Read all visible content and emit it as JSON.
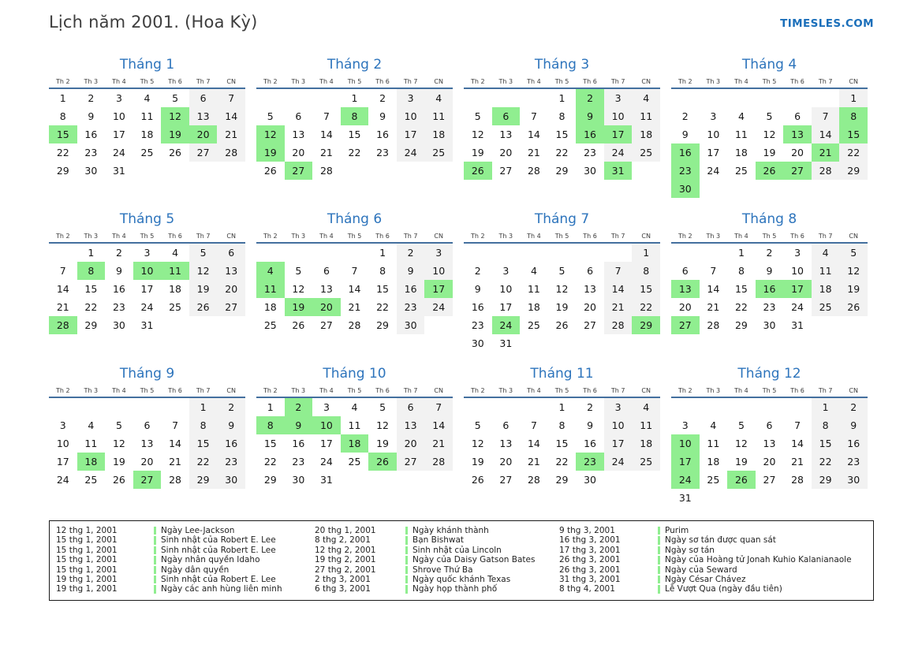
{
  "header": {
    "title": "Lịch năm 2001. (Hoa Kỳ)",
    "brand": "TIMESLES.COM"
  },
  "calendar": {
    "day_headers": [
      "Th 2",
      "Th 3",
      "Th 4",
      "Th 5",
      "Th 6",
      "Th 7",
      "CN"
    ],
    "months": [
      {
        "label": "Tháng 1",
        "first_dow": 0,
        "days": 31,
        "highlighted": [
          12,
          15,
          19,
          20
        ]
      },
      {
        "label": "Tháng 2",
        "first_dow": 3,
        "days": 28,
        "highlighted": [
          8,
          12,
          19,
          27
        ]
      },
      {
        "label": "Tháng 3",
        "first_dow": 3,
        "days": 31,
        "highlighted": [
          2,
          6,
          9,
          16,
          17,
          26,
          31
        ]
      },
      {
        "label": "Tháng 4",
        "first_dow": 6,
        "days": 30,
        "highlighted": [
          8,
          13,
          15,
          16,
          21,
          23,
          26,
          27,
          30
        ]
      },
      {
        "label": "Tháng 5",
        "first_dow": 1,
        "days": 31,
        "highlighted": [
          8,
          10,
          11,
          28
        ]
      },
      {
        "label": "Tháng 6",
        "first_dow": 4,
        "days": 30,
        "highlighted": [
          4,
          11,
          17,
          19,
          20
        ]
      },
      {
        "label": "Tháng 7",
        "first_dow": 6,
        "days": 31,
        "highlighted": [
          24,
          29
        ]
      },
      {
        "label": "Tháng 8",
        "first_dow": 2,
        "days": 31,
        "highlighted": [
          13,
          16,
          17,
          27
        ]
      },
      {
        "label": "Tháng 9",
        "first_dow": 5,
        "days": 30,
        "highlighted": [
          18,
          27
        ]
      },
      {
        "label": "Tháng 10",
        "first_dow": 0,
        "days": 31,
        "highlighted": [
          2,
          8,
          9,
          10,
          18,
          26
        ]
      },
      {
        "label": "Tháng 11",
        "first_dow": 3,
        "days": 30,
        "highlighted": [
          23
        ]
      },
      {
        "label": "Tháng 12",
        "first_dow": 5,
        "days": 31,
        "highlighted": [
          10,
          17,
          24,
          26
        ]
      }
    ]
  },
  "legend": {
    "columns": [
      [
        {
          "date": "12 thg 1, 2001",
          "name": "Ngày Lee-Jackson"
        },
        {
          "date": "15 thg 1, 2001",
          "name": "Sinh nhật của Robert E. Lee"
        },
        {
          "date": "15 thg 1, 2001",
          "name": "Sinh nhật của Robert E. Lee"
        },
        {
          "date": "15 thg 1, 2001",
          "name": "Ngày nhân quyền Idaho"
        },
        {
          "date": "15 thg 1, 2001",
          "name": "Ngày dân quyền"
        },
        {
          "date": "19 thg 1, 2001",
          "name": "Sinh nhật của Robert E. Lee"
        },
        {
          "date": "19 thg 1, 2001",
          "name": "Ngày các anh hùng liên minh"
        }
      ],
      [
        {
          "date": "20 thg 1, 2001",
          "name": "Ngày khánh thành"
        },
        {
          "date": "8 thg 2, 2001",
          "name": "Bạn Bishwat"
        },
        {
          "date": "12 thg 2, 2001",
          "name": "Sinh nhật của Lincoln"
        },
        {
          "date": "19 thg 2, 2001",
          "name": "Ngày của Daisy Gatson Bates"
        },
        {
          "date": "27 thg 2, 2001",
          "name": "Shrove Thứ Ba"
        },
        {
          "date": "2 thg 3, 2001",
          "name": "Ngày quốc khánh Texas"
        },
        {
          "date": "6 thg 3, 2001",
          "name": "Ngày họp thành phố"
        }
      ],
      [
        {
          "date": "9 thg 3, 2001",
          "name": "Purim"
        },
        {
          "date": "16 thg 3, 2001",
          "name": "Ngày sơ tán được quan sát"
        },
        {
          "date": "17 thg 3, 2001",
          "name": "Ngày sơ tán"
        },
        {
          "date": "26 thg 3, 2001",
          "name": "Ngày của Hoàng tử Jonah Kuhio Kalanianaole"
        },
        {
          "date": "26 thg 3, 2001",
          "name": "Ngày của Seward"
        },
        {
          "date": "31 thg 3, 2001",
          "name": "Ngày César Chávez"
        },
        {
          "date": "8 thg 4, 2001",
          "name": "Lễ Vượt Qua (ngày đầu tiên)"
        }
      ]
    ]
  },
  "colors": {
    "highlight": "#90ee90",
    "weekend_bg": "#f2f2f2",
    "accent": "#2d74bc",
    "rule": "#44709f",
    "brand": "#1b6fba"
  }
}
